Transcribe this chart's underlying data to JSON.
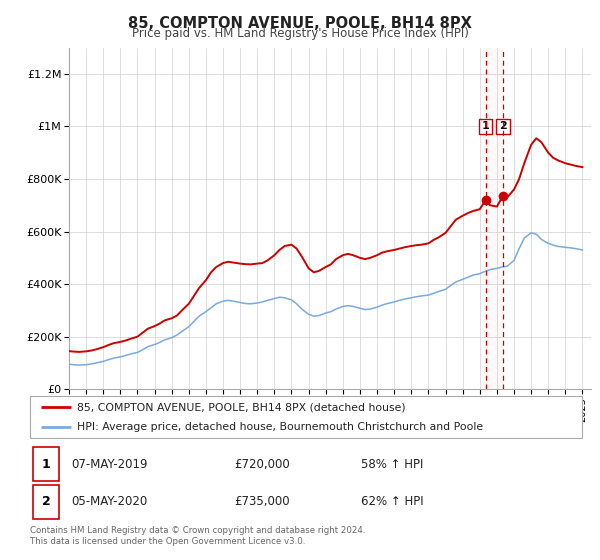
{
  "title": "85, COMPTON AVENUE, POOLE, BH14 8PX",
  "subtitle": "Price paid vs. HM Land Registry's House Price Index (HPI)",
  "ylim": [
    0,
    1300000
  ],
  "yticks": [
    0,
    200000,
    400000,
    600000,
    800000,
    1000000,
    1200000
  ],
  "ytick_labels": [
    "£0",
    "£200K",
    "£400K",
    "£600K",
    "£800K",
    "£1M",
    "£1.2M"
  ],
  "xlim_start": 1995.0,
  "xlim_end": 2025.5,
  "red_line_color": "#cc0000",
  "blue_line_color": "#7aaadd",
  "marker_color": "#cc0000",
  "vline_color": "#cc0000",
  "legend1_label": "85, COMPTON AVENUE, POOLE, BH14 8PX (detached house)",
  "legend2_label": "HPI: Average price, detached house, Bournemouth Christchurch and Poole",
  "transaction1_date": "07-MAY-2019",
  "transaction1_price": "£720,000",
  "transaction1_hpi": "58% ↑ HPI",
  "transaction1_year": 2019.35,
  "transaction1_y": 720000,
  "transaction2_date": "05-MAY-2020",
  "transaction2_price": "£735,000",
  "transaction2_hpi": "62% ↑ HPI",
  "transaction2_year": 2020.35,
  "transaction2_y": 735000,
  "footer_line1": "Contains HM Land Registry data © Crown copyright and database right 2024.",
  "footer_line2": "This data is licensed under the Open Government Licence v3.0.",
  "red_x": [
    1995.0,
    1995.3,
    1995.6,
    1996.0,
    1996.3,
    1996.6,
    1997.0,
    1997.3,
    1997.6,
    1998.0,
    1998.3,
    1998.6,
    1999.0,
    1999.3,
    1999.6,
    2000.0,
    2000.3,
    2000.6,
    2001.0,
    2001.3,
    2001.6,
    2002.0,
    2002.3,
    2002.6,
    2003.0,
    2003.3,
    2003.6,
    2004.0,
    2004.3,
    2004.6,
    2005.0,
    2005.3,
    2005.6,
    2006.0,
    2006.3,
    2006.6,
    2007.0,
    2007.3,
    2007.6,
    2008.0,
    2008.3,
    2008.6,
    2009.0,
    2009.3,
    2009.6,
    2010.0,
    2010.3,
    2010.6,
    2011.0,
    2011.3,
    2011.6,
    2012.0,
    2012.3,
    2012.6,
    2013.0,
    2013.3,
    2013.6,
    2014.0,
    2014.3,
    2014.6,
    2015.0,
    2015.3,
    2015.6,
    2016.0,
    2016.3,
    2016.6,
    2017.0,
    2017.3,
    2017.6,
    2018.0,
    2018.3,
    2018.6,
    2019.0,
    2019.35,
    2019.6,
    2020.0,
    2020.35,
    2020.6,
    2021.0,
    2021.3,
    2021.6,
    2022.0,
    2022.3,
    2022.6,
    2023.0,
    2023.3,
    2023.6,
    2024.0,
    2024.3,
    2024.6,
    2025.0
  ],
  "red_y": [
    145000,
    143000,
    142000,
    144000,
    147000,
    152000,
    160000,
    168000,
    175000,
    180000,
    185000,
    192000,
    200000,
    215000,
    230000,
    240000,
    250000,
    262000,
    270000,
    280000,
    300000,
    325000,
    355000,
    385000,
    415000,
    445000,
    465000,
    480000,
    485000,
    482000,
    478000,
    476000,
    475000,
    478000,
    480000,
    490000,
    510000,
    530000,
    545000,
    550000,
    535000,
    505000,
    460000,
    445000,
    450000,
    465000,
    475000,
    495000,
    510000,
    515000,
    510000,
    500000,
    495000,
    500000,
    510000,
    520000,
    525000,
    530000,
    535000,
    540000,
    545000,
    548000,
    550000,
    555000,
    568000,
    578000,
    595000,
    620000,
    645000,
    660000,
    670000,
    678000,
    685000,
    720000,
    700000,
    695000,
    735000,
    730000,
    760000,
    800000,
    860000,
    930000,
    955000,
    940000,
    900000,
    880000,
    870000,
    860000,
    855000,
    850000,
    845000
  ],
  "blue_x": [
    1995.0,
    1995.3,
    1995.6,
    1996.0,
    1996.3,
    1996.6,
    1997.0,
    1997.3,
    1997.6,
    1998.0,
    1998.3,
    1998.6,
    1999.0,
    1999.3,
    1999.6,
    2000.0,
    2000.3,
    2000.6,
    2001.0,
    2001.3,
    2001.6,
    2002.0,
    2002.3,
    2002.6,
    2003.0,
    2003.3,
    2003.6,
    2004.0,
    2004.3,
    2004.6,
    2005.0,
    2005.3,
    2005.6,
    2006.0,
    2006.3,
    2006.6,
    2007.0,
    2007.3,
    2007.6,
    2008.0,
    2008.3,
    2008.6,
    2009.0,
    2009.3,
    2009.6,
    2010.0,
    2010.3,
    2010.6,
    2011.0,
    2011.3,
    2011.6,
    2012.0,
    2012.3,
    2012.6,
    2013.0,
    2013.3,
    2013.6,
    2014.0,
    2014.3,
    2014.6,
    2015.0,
    2015.3,
    2015.6,
    2016.0,
    2016.3,
    2016.6,
    2017.0,
    2017.3,
    2017.6,
    2018.0,
    2018.3,
    2018.6,
    2019.0,
    2019.3,
    2019.6,
    2020.0,
    2020.3,
    2020.6,
    2021.0,
    2021.3,
    2021.6,
    2022.0,
    2022.3,
    2022.6,
    2023.0,
    2023.3,
    2023.6,
    2024.0,
    2024.3,
    2024.6,
    2025.0
  ],
  "blue_y": [
    95000,
    93000,
    92000,
    93000,
    96000,
    100000,
    106000,
    112000,
    118000,
    123000,
    128000,
    134000,
    140000,
    150000,
    162000,
    170000,
    178000,
    188000,
    196000,
    206000,
    220000,
    238000,
    258000,
    278000,
    295000,
    310000,
    325000,
    335000,
    338000,
    335000,
    330000,
    326000,
    325000,
    328000,
    332000,
    338000,
    345000,
    350000,
    348000,
    340000,
    325000,
    305000,
    285000,
    278000,
    280000,
    290000,
    295000,
    305000,
    315000,
    318000,
    315000,
    308000,
    303000,
    305000,
    312000,
    320000,
    326000,
    332000,
    338000,
    343000,
    348000,
    352000,
    355000,
    358000,
    365000,
    372000,
    380000,
    395000,
    408000,
    418000,
    426000,
    434000,
    440000,
    448000,
    455000,
    460000,
    465000,
    468000,
    490000,
    535000,
    575000,
    595000,
    590000,
    570000,
    555000,
    548000,
    543000,
    540000,
    538000,
    535000,
    530000
  ]
}
